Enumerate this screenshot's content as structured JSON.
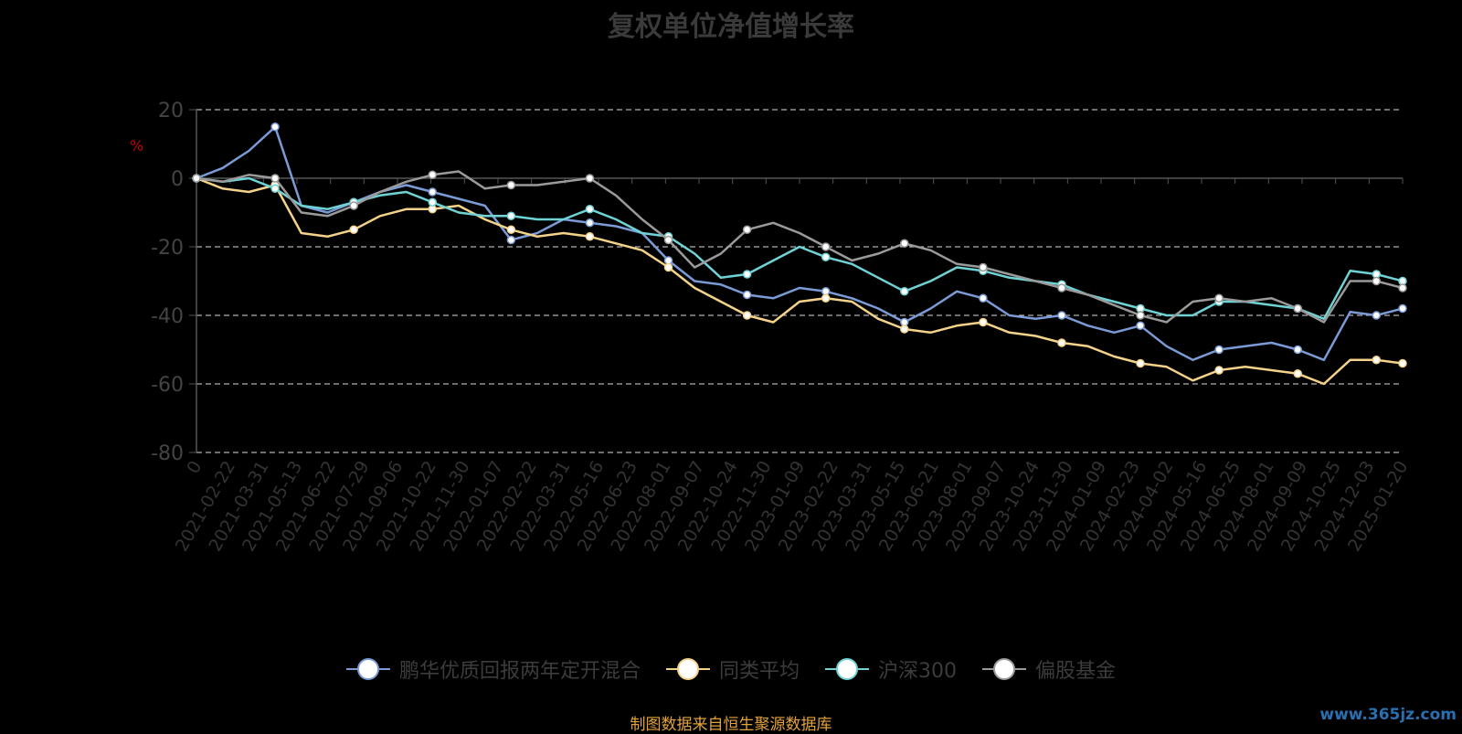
{
  "chart_data": {
    "type": "line",
    "title": "复权单位净值增长率",
    "ylabel": "%",
    "ylim": [
      -80,
      20
    ],
    "yticks": [
      20,
      0,
      -20,
      -40,
      -60,
      -80
    ],
    "grid": true,
    "legend_position": "bottom",
    "x_tick_labels": [
      "0",
      "2021-02-22",
      "2021-03-31",
      "2021-05-13",
      "2021-06-22",
      "2021-07-29",
      "2021-09-06",
      "2021-10-22",
      "2021-11-30",
      "2022-01-07",
      "2022-02-22",
      "2022-03-31",
      "2022-05-16",
      "2022-06-23",
      "2022-08-01",
      "2022-09-07",
      "2022-10-24",
      "2022-11-30",
      "2023-01-09",
      "2023-02-22",
      "2023-03-31",
      "2023-05-15",
      "2023-06-21",
      "2023-08-01",
      "2023-09-07",
      "2023-10-24",
      "2023-11-30",
      "2024-01-09",
      "2024-02-23",
      "2024-04-02",
      "2024-05-16",
      "2024-06-25",
      "2024-08-01",
      "2024-09-09",
      "2024-10-25",
      "2024-12-03",
      "2025-01-20"
    ],
    "series": [
      {
        "name": "鹏华优质回报两年定开混合",
        "color": "#7b9bd6",
        "values": [
          0,
          3,
          8,
          15,
          -8,
          -10,
          -7,
          -4,
          -2,
          -4,
          -6,
          -8,
          -18,
          -16,
          -12,
          -13,
          -14,
          -16,
          -24,
          -30,
          -31,
          -34,
          -35,
          -32,
          -33,
          -35,
          -38,
          -42,
          -38,
          -33,
          -35,
          -40,
          -41,
          -40,
          -43,
          -45,
          -43,
          -49,
          -53,
          -50,
          -49,
          -48,
          -50,
          -53,
          -39,
          -40,
          -38
        ]
      },
      {
        "name": "同类平均",
        "color": "#f4d28a",
        "values": [
          0,
          -3,
          -4,
          -2,
          -16,
          -17,
          -15,
          -11,
          -9,
          -9,
          -8,
          -12,
          -15,
          -17,
          -16,
          -17,
          -19,
          -21,
          -26,
          -32,
          -36,
          -40,
          -42,
          -36,
          -35,
          -36,
          -41,
          -44,
          -45,
          -43,
          -42,
          -45,
          -46,
          -48,
          -49,
          -52,
          -54,
          -55,
          -59,
          -56,
          -55,
          -56,
          -57,
          -60,
          -53,
          -53,
          -54
        ]
      },
      {
        "name": "沪深300",
        "color": "#6fd3d6",
        "values": [
          0,
          -1,
          0,
          -3,
          -8,
          -9,
          -7,
          -5,
          -4,
          -7,
          -10,
          -11,
          -11,
          -12,
          -12,
          -9,
          -12,
          -16,
          -17,
          -22,
          -29,
          -28,
          -24,
          -20,
          -23,
          -25,
          -29,
          -33,
          -30,
          -26,
          -27,
          -29,
          -30,
          -31,
          -34,
          -36,
          -38,
          -40,
          -40,
          -36,
          -36,
          -37,
          -38,
          -41,
          -27,
          -28,
          -30
        ]
      },
      {
        "name": "偏股基金",
        "color": "#9a9a9a",
        "values": [
          0,
          -1,
          1,
          0,
          -10,
          -11,
          -8,
          -4,
          -1,
          1,
          2,
          -3,
          -2,
          -2,
          -1,
          0,
          -5,
          -12,
          -18,
          -26,
          -22,
          -15,
          -13,
          -16,
          -20,
          -24,
          -22,
          -19,
          -21,
          -25,
          -26,
          -28,
          -30,
          -32,
          -34,
          -37,
          -40,
          -42,
          -36,
          -35,
          -36,
          -35,
          -38,
          -42,
          -30,
          -30,
          -32
        ]
      }
    ]
  },
  "source_note": "制图数据来自恒生聚源数据库",
  "watermark": "www.365jz.com"
}
